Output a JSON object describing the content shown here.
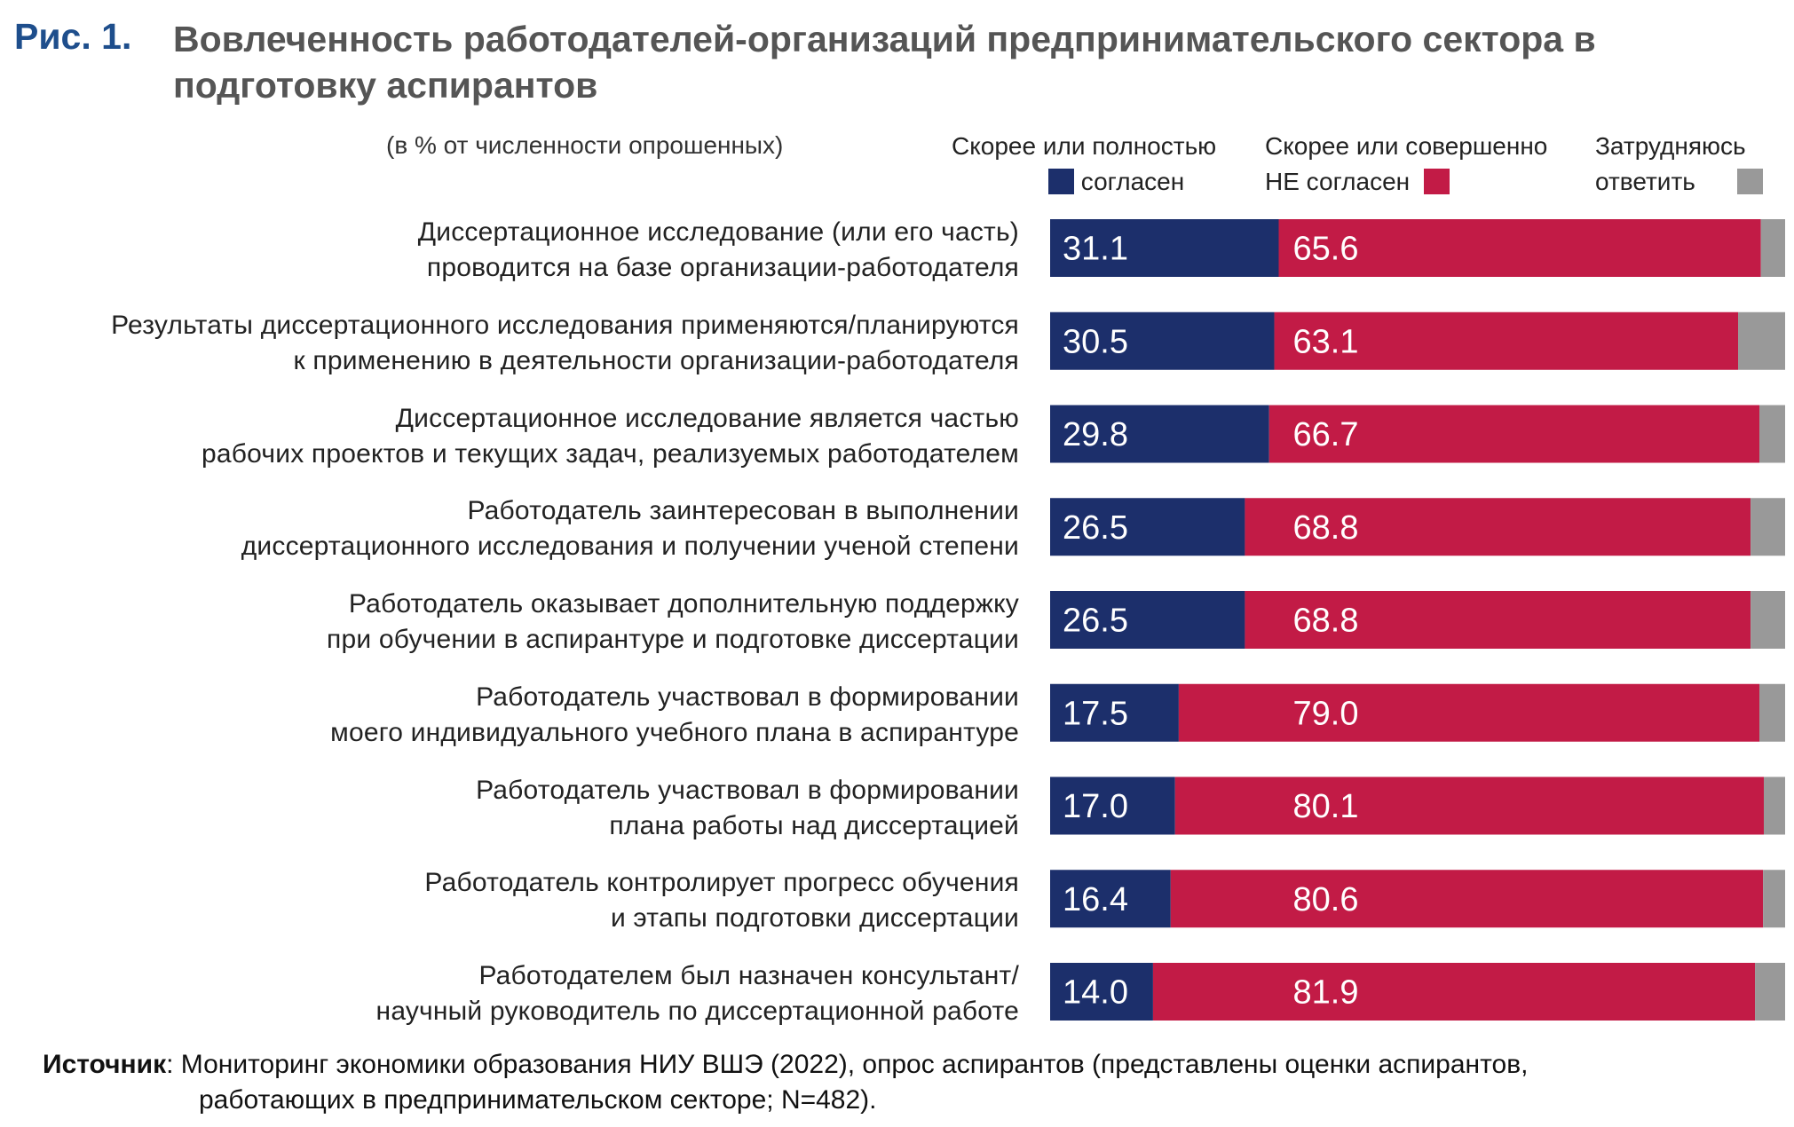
{
  "figure": {
    "label": "Рис. 1.",
    "title": "Вовлеченность работодателей-организаций предпринимательского сектора в подготовку аспирантов",
    "units_note": "(в % от численности опрошенных)"
  },
  "legend": {
    "agree_line1": "Скорее или полностью",
    "agree_line2": "согласен",
    "disagree_line1": "Скорее или совершенно",
    "disagree_line2": "НЕ согласен",
    "hard_line1": "Затрудняюсь",
    "hard_line2": "ответить"
  },
  "colors": {
    "agree": "#1c2f6b",
    "disagree": "#c21b46",
    "hard": "#999999",
    "title_label": "#1e4e8c"
  },
  "chart_data": {
    "type": "bar",
    "orientation": "horizontal",
    "stacked": true,
    "xlim": [
      0,
      100
    ],
    "categories": [
      [
        "Диссертационное исследование (или его часть)",
        "проводится на базе организации-работодателя"
      ],
      [
        "Результаты диссертационного исследования применяются/планируются",
        "к применению в деятельности организации-работодателя"
      ],
      [
        "Диссертационное исследование является частью",
        "рабочих проектов и текущих задач, реализуемых работодателем"
      ],
      [
        "Работодатель заинтересован в выполнении",
        "диссертационного исследования и получении ученой степени"
      ],
      [
        "Работодатель оказывает дополнительную поддержку",
        "при обучении в аспирантуре и подготовке диссертации"
      ],
      [
        "Работодатель участвовал в формировании",
        "моего индивидуального учебного плана в аспирантуре"
      ],
      [
        "Работодатель участвовал в формировании",
        "плана работы над диссертацией"
      ],
      [
        "Работодатель контролирует прогресс обучения",
        "и этапы подготовки диссертации"
      ],
      [
        "Работодателем был назначен консультант/",
        "научный руководитель по диссертационной работе"
      ]
    ],
    "series": [
      {
        "name": "Скорее или полностью согласен",
        "values": [
          31.1,
          30.5,
          29.8,
          26.5,
          26.5,
          17.5,
          17.0,
          16.4,
          14.0
        ],
        "labels": [
          "31.1",
          "30.5",
          "29.8",
          "26.5",
          "26.5",
          "17.5",
          "17.0",
          "16.4",
          "14.0"
        ]
      },
      {
        "name": "Скорее или совершенно НЕ согласен",
        "values": [
          65.6,
          63.1,
          66.7,
          68.8,
          68.8,
          79.0,
          80.1,
          80.6,
          81.9
        ],
        "labels": [
          "65.6",
          "63.1",
          "66.7",
          "68.8",
          "68.8",
          "79.0",
          "80.1",
          "80.6",
          "81.9"
        ]
      },
      {
        "name": "Затрудняюсь ответить",
        "values": [
          3.3,
          6.4,
          3.5,
          4.7,
          4.7,
          3.5,
          2.9,
          3.0,
          4.1
        ]
      }
    ]
  },
  "source": {
    "label": "Источник",
    "text_line1": ": Мониторинг экономики образования НИУ ВШЭ (2022), опрос аспирантов (представлены оценки аспирантов,",
    "text_line2": "работающих в предпринимательском секторе; N=482)."
  }
}
